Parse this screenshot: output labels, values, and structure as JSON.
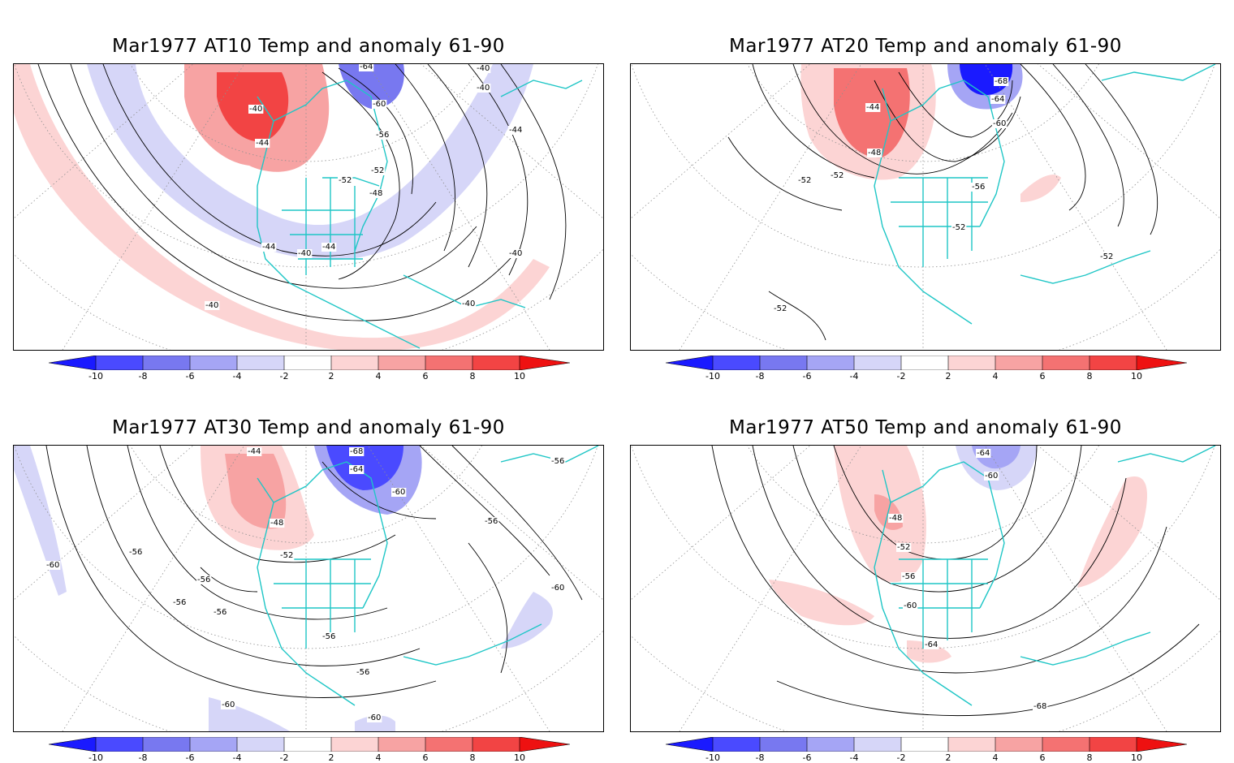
{
  "colorbar": {
    "ticks": [
      "-10",
      "-8",
      "-6",
      "-4",
      "-2",
      "2",
      "4",
      "6",
      "8",
      "10"
    ],
    "colors": [
      "#1a1aff",
      "#4a4aff",
      "#7878f0",
      "#a5a5f5",
      "#d6d6f8",
      "#ffffff",
      "#fcd4d4",
      "#f7a3a3",
      "#f47272",
      "#f24444",
      "#ee1111"
    ]
  },
  "map_colors": {
    "coast": "#1fc6c6",
    "contour": "#000000",
    "graticule": "#909090",
    "warm": [
      "#fcd4d4",
      "#f7a3a3",
      "#f47272",
      "#f24444"
    ],
    "cold": [
      "#d6d6f8",
      "#a5a5f5",
      "#7878f0",
      "#4a4aff"
    ]
  },
  "panels": [
    {
      "title": "Mar1977 AT10 Temp and anomaly 61-90",
      "contour_labels": [
        "-64",
        "-40",
        "-40",
        "-40",
        "-60",
        "-44",
        "-56",
        "-44",
        "-52",
        "-52",
        "-48",
        "-44",
        "-44",
        "-40",
        "-40",
        "-40",
        "-40"
      ]
    },
    {
      "title": "Mar1977 AT20 Temp and anomaly 61-90",
      "contour_labels": [
        "-68",
        "-64",
        "-44",
        "-60",
        "-48",
        "-52",
        "-52",
        "-56",
        "-52",
        "-52",
        "-52"
      ]
    },
    {
      "title": "Mar1977 AT30 Temp and anomaly 61-90",
      "contour_labels": [
        "-44",
        "-68",
        "-64",
        "-56",
        "-60",
        "-48",
        "-56",
        "-52",
        "-60",
        "-56",
        "-56",
        "-56",
        "-60",
        "-56",
        "-56",
        "-56",
        "-60",
        "-60"
      ]
    },
    {
      "title": "Mar1977 AT50 Temp and anomaly 61-90",
      "contour_labels": [
        "-64",
        "-60",
        "-48",
        "-52",
        "-56",
        "-60",
        "-64",
        "-68"
      ]
    }
  ]
}
